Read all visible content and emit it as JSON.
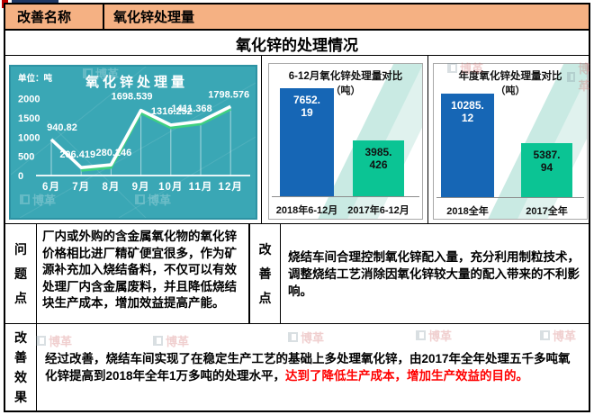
{
  "header": {
    "label": "改善名称",
    "value": "氧化锌处理量"
  },
  "section_title": "氧化锌的处理情况",
  "chart_data": [
    {
      "type": "line",
      "title": "氧化锌处理量",
      "unit_label": "单位：吨",
      "categories": [
        "6月",
        "7月",
        "8月",
        "9月",
        "10月",
        "11月",
        "12月"
      ],
      "values": [
        940.82,
        206.419,
        280.246,
        1698.539,
        1316.252,
        1411.368,
        1798.576
      ],
      "point_labels": [
        "940.82",
        "206.419",
        "280.246",
        "1698.539",
        "1316.252",
        "1411.368",
        "1798.576"
      ],
      "yticks": [
        0,
        500,
        1000,
        1500,
        2000
      ],
      "ylim": [
        0,
        2000
      ],
      "grid": false,
      "bg_color": "#3AA7B5",
      "border_color": "#2D92A3",
      "line_color": "#FFFFFF",
      "accent_line_color": "#3FD080",
      "text_color": "#FFFFFF"
    },
    {
      "type": "bar",
      "title": "6-12月氧化锌处理量对比",
      "subtitle": "（吨）",
      "categories": [
        "2018年6-12月",
        "2017年6-12月"
      ],
      "values": [
        7652.19,
        3985.426
      ],
      "value_labels": [
        [
          "7652.",
          "19"
        ],
        [
          "3985.",
          "426"
        ]
      ],
      "bar_colors": [
        "#1666B5",
        "#0BC494"
      ],
      "value_label_colors": [
        "#FFFFFF",
        "#111111"
      ],
      "legend": "none"
    },
    {
      "type": "bar",
      "title": "年度氧化锌处理量对比",
      "subtitle": "（吨）",
      "categories": [
        "2018全年",
        "2017全年"
      ],
      "values": [
        10285.12,
        5387.94
      ],
      "value_labels": [
        [
          "10285.",
          "12"
        ],
        [
          "5387.",
          "94"
        ]
      ],
      "bar_colors": [
        "#1666B5",
        "#0BC494"
      ],
      "value_label_colors": [
        "#FFFFFF",
        "#111111"
      ],
      "legend": "none"
    }
  ],
  "problem": {
    "label": "问题点",
    "text": "厂内或外购的含金属氧化物的氧化锌价格相比进厂精矿便宜很多，作为矿源补充加入烧结备料，不仅可以有效处理厂内含金属废料，并且降低烧结块生产成本，增加效益提高产能。"
  },
  "improvement": {
    "label": "改善点",
    "text": "烧结车间合理控制氧化锌配入量，充分利用制粒技术，调整烧结工艺消除因氧化锌较大量的配入带来的不利影响。"
  },
  "effect": {
    "label": "改善效果",
    "text": "经过改善，烧结车间实现了在稳定生产工艺的基础上多处理氧化锌，由2017年全年处理五千多吨氧化锌提高到2018年全年1万多吨的处理水平，",
    "highlight": "达到了降低生产成本，增加生产效益的目的。",
    "highlight_color": "#FF0000"
  },
  "watermark": {
    "text": "博革"
  },
  "colors": {
    "header_bg": "#F5B183",
    "outer_border": "#000000",
    "chart_teal_bg": "#3AA7B5",
    "bar_blue": "#1666B5",
    "bar_green": "#0BC494",
    "swoosh_teal": "#C9EAE3",
    "highlight_red": "#FF0000"
  }
}
